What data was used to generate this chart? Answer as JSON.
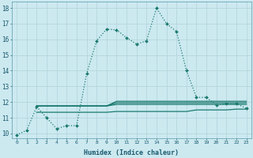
{
  "xlabel": "Humidex (Indice chaleur)",
  "bg_color": "#cce9f0",
  "grid_color": "#b8d8e0",
  "line_color": "#1a7a6e",
  "ylim": [
    9.7,
    18.4
  ],
  "xlim": [
    -0.5,
    23.5
  ],
  "yticks": [
    10,
    11,
    12,
    13,
    14,
    15,
    16,
    17,
    18
  ],
  "xticks": [
    0,
    1,
    2,
    3,
    4,
    5,
    6,
    7,
    8,
    9,
    10,
    11,
    12,
    13,
    14,
    15,
    16,
    17,
    18,
    19,
    20,
    21,
    22,
    23
  ],
  "series": [
    {
      "x": [
        0,
        1,
        2,
        3,
        4,
        5,
        6,
        7,
        8,
        9,
        10,
        11,
        12,
        13,
        14,
        15,
        16,
        17,
        18,
        19,
        20,
        21,
        22,
        23
      ],
      "y": [
        9.9,
        10.2,
        11.7,
        11.0,
        10.3,
        10.5,
        10.5,
        13.8,
        15.9,
        16.65,
        16.6,
        16.1,
        15.7,
        15.9,
        18.0,
        17.0,
        16.5,
        14.0,
        12.3,
        12.3,
        11.8,
        11.9,
        11.9,
        11.6
      ],
      "style": "dotted",
      "marker": "D",
      "markersize": 2.0,
      "linewidth": 0.9
    },
    {
      "x": [
        2,
        3,
        4,
        5,
        6,
        7,
        8,
        9,
        10,
        11,
        12,
        13,
        14,
        15,
        16,
        17,
        18,
        19,
        20,
        21,
        22,
        23
      ],
      "y": [
        11.75,
        11.75,
        11.75,
        11.75,
        11.75,
        11.75,
        11.75,
        11.75,
        11.85,
        11.85,
        11.85,
        11.85,
        11.85,
        11.85,
        11.85,
        11.85,
        11.85,
        11.85,
        11.85,
        11.85,
        11.85,
        11.85
      ],
      "style": "solid",
      "marker": null,
      "linewidth": 0.9
    },
    {
      "x": [
        2,
        3,
        4,
        5,
        6,
        7,
        8,
        9,
        10,
        11,
        12,
        13,
        14,
        15,
        16,
        17,
        18,
        19,
        20,
        21,
        22,
        23
      ],
      "y": [
        11.75,
        11.75,
        11.75,
        11.75,
        11.75,
        11.75,
        11.75,
        11.75,
        11.95,
        11.95,
        11.95,
        11.95,
        11.95,
        11.95,
        11.95,
        11.95,
        11.95,
        11.95,
        11.95,
        11.95,
        11.95,
        11.95
      ],
      "style": "solid",
      "marker": null,
      "linewidth": 0.9
    },
    {
      "x": [
        2,
        3,
        4,
        5,
        6,
        7,
        8,
        9,
        10,
        11,
        12,
        13,
        14,
        15,
        16,
        17,
        18,
        19,
        20,
        21,
        22,
        23
      ],
      "y": [
        11.75,
        11.75,
        11.75,
        11.75,
        11.75,
        11.75,
        11.75,
        11.75,
        12.05,
        12.05,
        12.05,
        12.05,
        12.05,
        12.05,
        12.05,
        12.05,
        12.05,
        12.05,
        12.05,
        12.05,
        12.05,
        12.05
      ],
      "style": "solid",
      "marker": null,
      "linewidth": 0.9
    },
    {
      "x": [
        2,
        3,
        4,
        5,
        6,
        7,
        8,
        9,
        10,
        11,
        12,
        13,
        14,
        15,
        16,
        17,
        18,
        19,
        20,
        21,
        22,
        23
      ],
      "y": [
        11.35,
        11.35,
        11.35,
        11.35,
        11.35,
        11.35,
        11.35,
        11.35,
        11.4,
        11.4,
        11.4,
        11.4,
        11.4,
        11.4,
        11.4,
        11.4,
        11.5,
        11.5,
        11.5,
        11.5,
        11.55,
        11.55
      ],
      "style": "solid",
      "marker": null,
      "linewidth": 0.9
    }
  ]
}
